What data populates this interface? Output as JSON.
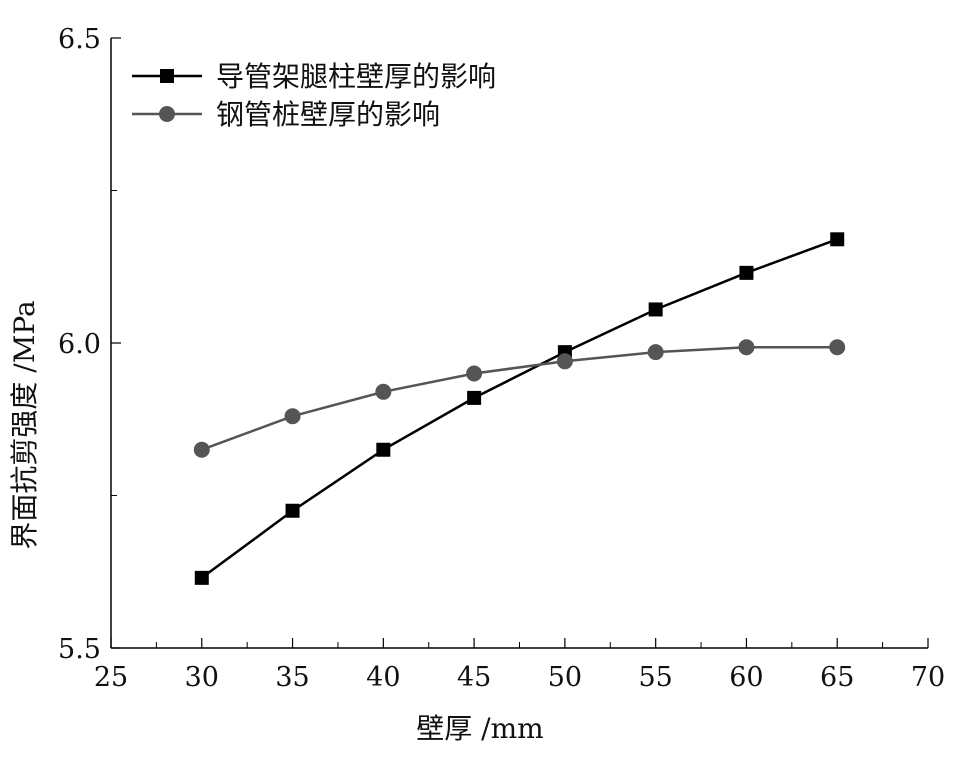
{
  "chart_data": {
    "type": "line",
    "xlabel": "壁厚 /mm",
    "ylabel": "界面抗剪强度 /MPa",
    "xlim": [
      25,
      70
    ],
    "ylim": [
      5.5,
      6.5
    ],
    "x_ticks": [
      25,
      30,
      35,
      40,
      45,
      50,
      55,
      60,
      65,
      70
    ],
    "x_tick_labels": [
      "25",
      "30",
      "35",
      "40",
      "45",
      "50",
      "55",
      "60",
      "65",
      "70"
    ],
    "y_ticks": [
      5.5,
      6.0,
      6.5
    ],
    "y_tick_labels": [
      "5.5",
      "6.0",
      "6.5"
    ],
    "grid": false,
    "legend_position": "top-left",
    "x": [
      30,
      35,
      40,
      45,
      50,
      55,
      60,
      65
    ],
    "series": [
      {
        "name": "导管架腿柱壁厚的影响",
        "marker": "square",
        "color": "#000000",
        "values": [
          5.615,
          5.725,
          5.825,
          5.91,
          5.985,
          6.055,
          6.115,
          6.17
        ]
      },
      {
        "name": "钢管桩壁厚的影响",
        "marker": "circle",
        "color": "#555555",
        "values": [
          5.825,
          5.88,
          5.92,
          5.95,
          5.97,
          5.985,
          5.993,
          5.993
        ]
      }
    ]
  }
}
